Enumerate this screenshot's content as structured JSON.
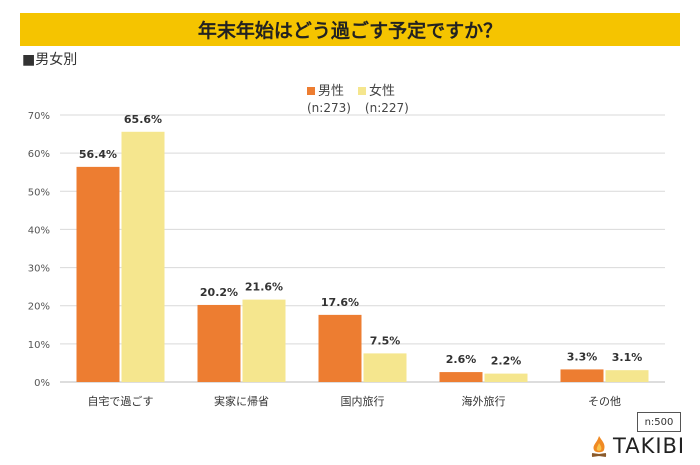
{
  "title": "年末年始はどう過ごす予定ですか？",
  "subtitle": "■男女別",
  "sample_note": "n:500",
  "logo_text": "TAKIBI",
  "colors": {
    "male": "#ED7D31",
    "female": "#F5E68E",
    "title_bg": "#F5C400"
  },
  "chart_data": {
    "type": "bar",
    "categories": [
      "自宅で過ごす",
      "実家に帰省",
      "国内旅行",
      "海外旅行",
      "その他"
    ],
    "series": [
      {
        "name": "男性",
        "n": "(n:273)",
        "values": [
          56.4,
          20.2,
          17.6,
          2.6,
          3.3
        ]
      },
      {
        "name": "女性",
        "n": "(n:227)",
        "values": [
          65.6,
          21.6,
          7.5,
          2.2,
          3.1
        ]
      }
    ],
    "ylim": [
      0,
      70
    ],
    "yticks": [
      "0%",
      "10%",
      "20%",
      "30%",
      "40%",
      "50%",
      "60%",
      "70%"
    ],
    "grid": true,
    "legend": "top-center"
  }
}
